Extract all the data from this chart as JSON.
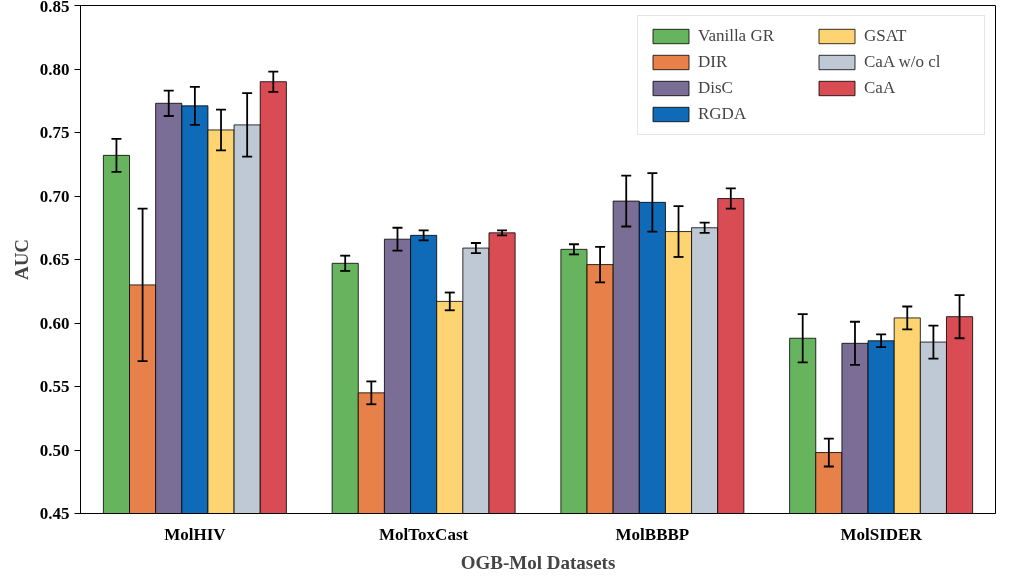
{
  "chart_data": {
    "type": "bar",
    "xlabel": "OGB-Mol Datasets",
    "ylabel": "AUC",
    "categories": [
      "MolHIV",
      "MolToxCast",
      "MolBBBP",
      "MolSIDER"
    ],
    "ylim": [
      0.45,
      0.85
    ],
    "yticks": [
      0.45,
      {
        "value": 0.5,
        "label": "0.50"
      },
      0.55,
      {
        "value": 0.6,
        "label": "0.60"
      },
      0.65,
      {
        "value": 0.7,
        "label": "0.70"
      },
      0.75,
      {
        "value": 0.8,
        "label": "0.80"
      },
      0.85
    ],
    "grid": false,
    "legend": "top right",
    "series": [
      {
        "name": "Vanilla GR",
        "color": "#66b55e",
        "values": [
          0.732,
          0.647,
          0.658,
          0.588
        ],
        "errors": [
          0.013,
          0.006,
          0.004,
          0.019
        ]
      },
      {
        "name": "DIR",
        "color": "#e8804a",
        "values": [
          0.63,
          0.545,
          0.646,
          0.498
        ],
        "errors": [
          0.06,
          0.009,
          0.014,
          0.011
        ]
      },
      {
        "name": "DisC",
        "color": "#7b6e96",
        "values": [
          0.773,
          0.666,
          0.696,
          0.584
        ],
        "errors": [
          0.01,
          0.009,
          0.02,
          0.017
        ]
      },
      {
        "name": "RGDA",
        "color": "#0f6bb8",
        "values": [
          0.771,
          0.669,
          0.695,
          0.586
        ],
        "errors": [
          0.015,
          0.004,
          0.023,
          0.005
        ]
      },
      {
        "name": "GSAT",
        "color": "#fdd471",
        "values": [
          0.752,
          0.617,
          0.672,
          0.604
        ],
        "errors": [
          0.016,
          0.007,
          0.02,
          0.009
        ]
      },
      {
        "name": "CaA w/o cl",
        "color": "#bfc9d6",
        "values": [
          0.756,
          0.659,
          0.675,
          0.585
        ],
        "errors": [
          0.025,
          0.004,
          0.004,
          0.013
        ]
      },
      {
        "name": "CaA",
        "color": "#d94c54",
        "values": [
          0.79,
          0.671,
          0.698,
          0.605
        ],
        "errors": [
          0.008,
          0.002,
          0.008,
          0.017
        ]
      }
    ]
  }
}
